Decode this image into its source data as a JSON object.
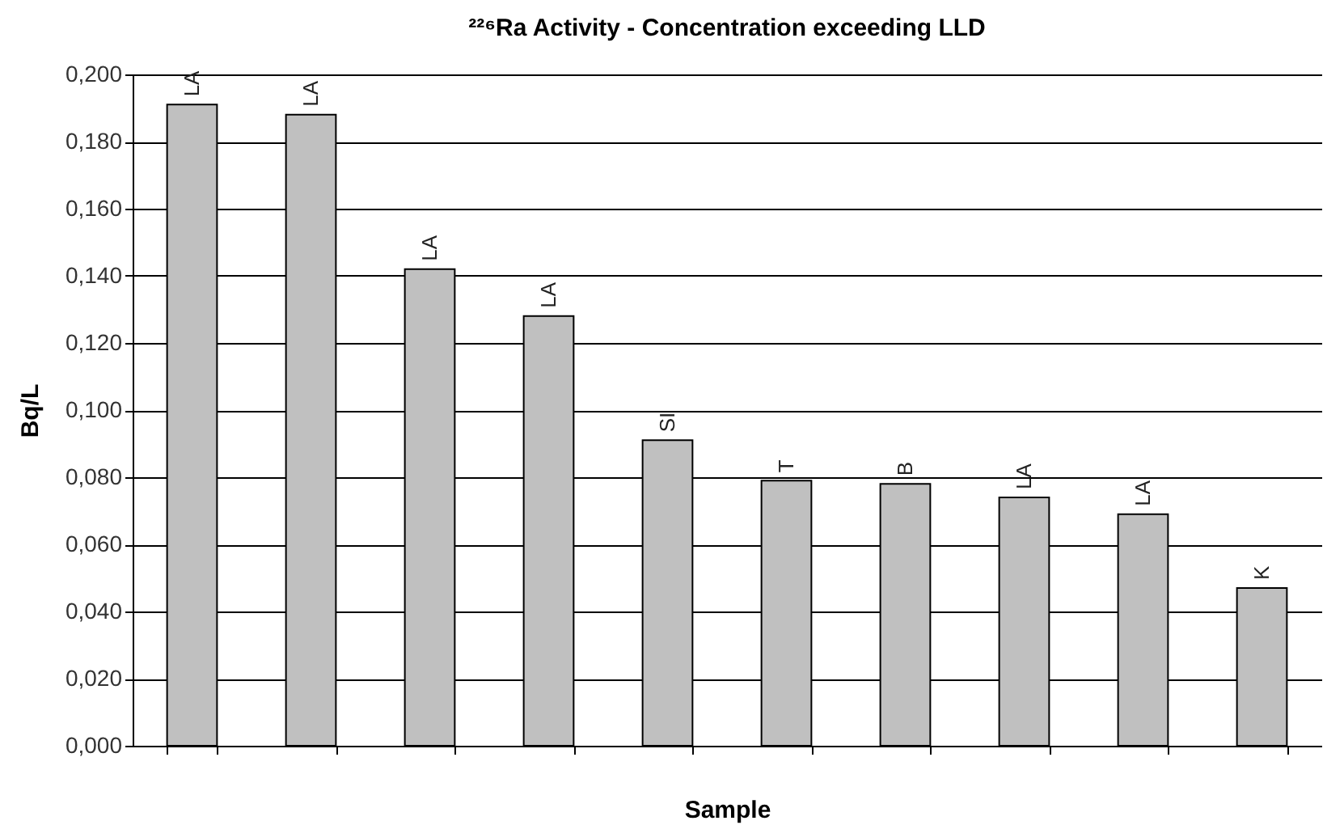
{
  "chart_data": {
    "type": "bar",
    "title": "²²⁶Ra Activity - Concentration exceeding LLD",
    "xlabel": "Sample",
    "ylabel": "Bq/L",
    "categories": [
      null,
      null,
      null,
      null,
      null,
      null,
      null,
      null,
      null,
      null
    ],
    "values": [
      0.191,
      0.188,
      0.142,
      0.128,
      0.091,
      0.079,
      0.078,
      0.074,
      0.069,
      0.047
    ],
    "value_labels": [
      "LA",
      "LA",
      "LA",
      "LA",
      "SI",
      "T",
      "B",
      "LA",
      "LA",
      "K"
    ],
    "color": "#c0c0c0",
    "ylim": [
      0,
      0.2
    ],
    "yticks": [
      {
        "value": 0,
        "label": "0,000"
      },
      {
        "value": 0.02,
        "label": "0,020"
      },
      {
        "value": 0.04,
        "label": "0,040"
      },
      {
        "value": 0.06,
        "label": "0,060"
      },
      {
        "value": 0.08,
        "label": "0,080"
      },
      {
        "value": 0.1,
        "label": "0,100"
      },
      {
        "value": 0.12,
        "label": "0,120"
      },
      {
        "value": 0.14,
        "label": "0,140"
      },
      {
        "value": 0.16,
        "label": "0,160"
      },
      {
        "value": 0.18,
        "label": "0,180"
      },
      {
        "value": 0.2,
        "label": "0,200"
      }
    ],
    "grid": "y"
  }
}
